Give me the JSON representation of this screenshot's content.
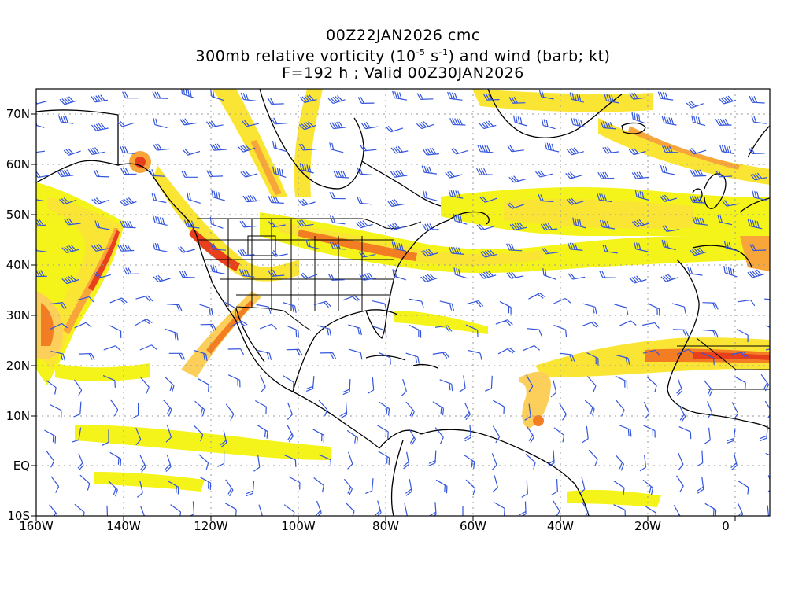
{
  "title": {
    "line1": "00Z22JAN2026 cmc",
    "line2_pre": "300mb relative vorticity (10",
    "line2_exp1": "-5",
    "line2_mid": " s",
    "line2_exp2": "-1",
    "line2_post": ") and wind (barb; kt)",
    "line3": "F=192 h ; Valid 00Z30JAN2026"
  },
  "axes": {
    "lon_ticks": [
      "160W",
      "140W",
      "120W",
      "100W",
      "80W",
      "60W",
      "40W",
      "20W",
      "0"
    ],
    "lat_ticks": [
      "70N",
      "60N",
      "50N",
      "40N",
      "30N",
      "20N",
      "10N",
      "EQ",
      "10S"
    ]
  },
  "colors": {
    "light_yellow": "#f4f41a",
    "yellow": "#fbe534",
    "light_orange": "#fccf5a",
    "orange": "#f8a53a",
    "dark_orange": "#f27d22",
    "red": "#e8401c",
    "barb": "#3355dd",
    "coast": "#000000",
    "grid": "#9a9a9a"
  },
  "legend_note": "",
  "features": {
    "vorticity_bands": "jet-stream vorticity shading",
    "wind_barbs": "blue wind barbs",
    "coastlines": "black coastlines and borders"
  }
}
